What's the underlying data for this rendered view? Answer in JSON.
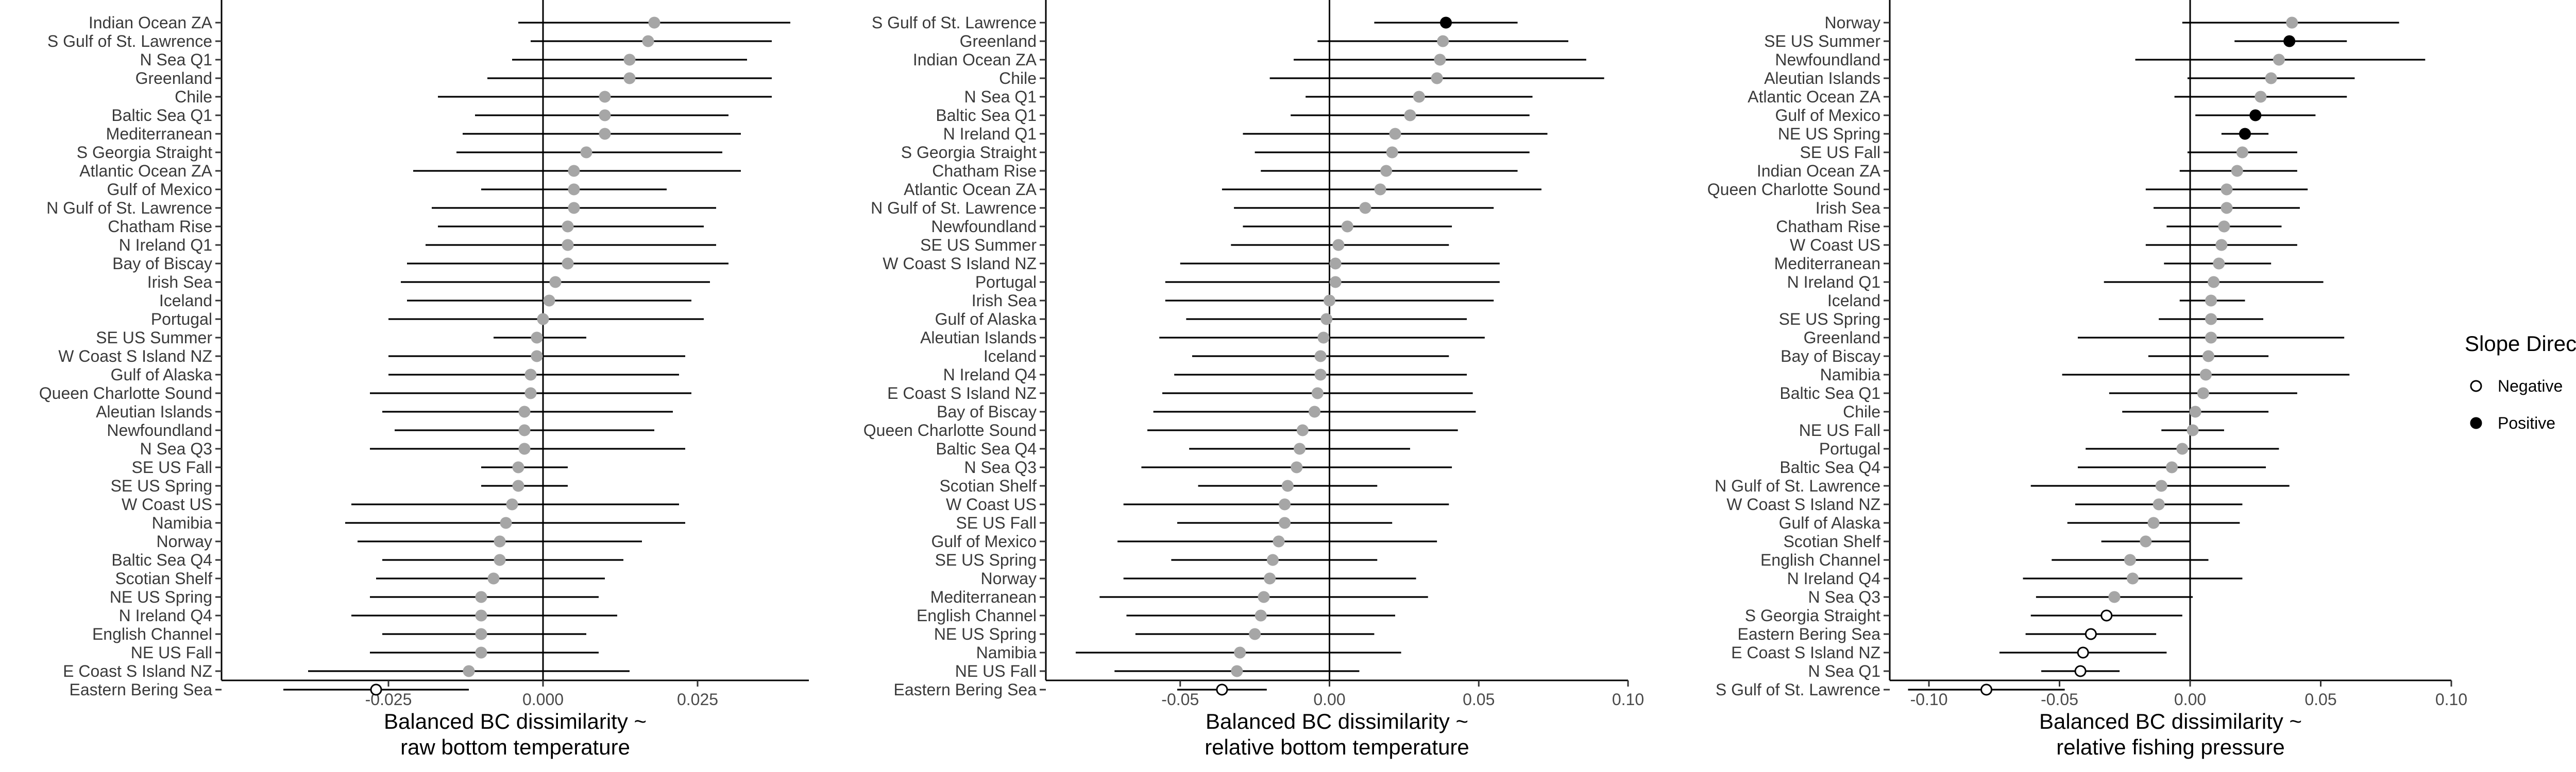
{
  "colors": {
    "negative": "#ffffff",
    "positive": "#000000",
    "nonsignificant": "#a6a6a6",
    "line": "#000000"
  },
  "legend": {
    "title": "Slope Direction",
    "items": [
      {
        "label": "Negative",
        "fill": "#ffffff"
      },
      {
        "label": "Positive",
        "fill": "#000000"
      }
    ]
  },
  "chart_data": [
    {
      "type": "forest",
      "xlabel_line1": "Balanced BC dissimilarity ~",
      "xlabel_line2": "raw bottom temperature",
      "xlim": [
        -0.052,
        0.043
      ],
      "xticks": [
        -0.025,
        0.0,
        0.025
      ],
      "xtick_labels": [
        "-0.025",
        "0.000",
        "0.025"
      ],
      "vline_at": 0,
      "points": [
        {
          "label": "Indian Ocean ZA",
          "est": 0.018,
          "lo": -0.004,
          "hi": 0.04,
          "sig": "none"
        },
        {
          "label": "S Gulf of St. Lawrence",
          "est": 0.017,
          "lo": -0.002,
          "hi": 0.037,
          "sig": "none"
        },
        {
          "label": "N Sea Q1",
          "est": 0.014,
          "lo": -0.005,
          "hi": 0.033,
          "sig": "none"
        },
        {
          "label": "Greenland",
          "est": 0.014,
          "lo": -0.009,
          "hi": 0.037,
          "sig": "none"
        },
        {
          "label": "Chile",
          "est": 0.01,
          "lo": -0.017,
          "hi": 0.037,
          "sig": "none"
        },
        {
          "label": "Baltic Sea Q1",
          "est": 0.01,
          "lo": -0.011,
          "hi": 0.03,
          "sig": "none"
        },
        {
          "label": "Mediterranean",
          "est": 0.01,
          "lo": -0.013,
          "hi": 0.032,
          "sig": "none"
        },
        {
          "label": "S Georgia Straight",
          "est": 0.007,
          "lo": -0.014,
          "hi": 0.029,
          "sig": "none"
        },
        {
          "label": "Atlantic Ocean ZA",
          "est": 0.005,
          "lo": -0.021,
          "hi": 0.032,
          "sig": "none"
        },
        {
          "label": "Gulf of Mexico",
          "est": 0.005,
          "lo": -0.01,
          "hi": 0.02,
          "sig": "none"
        },
        {
          "label": "N Gulf of St. Lawrence",
          "est": 0.005,
          "lo": -0.018,
          "hi": 0.028,
          "sig": "none"
        },
        {
          "label": "Chatham Rise",
          "est": 0.004,
          "lo": -0.017,
          "hi": 0.026,
          "sig": "none"
        },
        {
          "label": "N Ireland Q1",
          "est": 0.004,
          "lo": -0.019,
          "hi": 0.028,
          "sig": "none"
        },
        {
          "label": "Bay of Biscay",
          "est": 0.004,
          "lo": -0.022,
          "hi": 0.03,
          "sig": "none"
        },
        {
          "label": "Irish Sea",
          "est": 0.002,
          "lo": -0.023,
          "hi": 0.027,
          "sig": "none"
        },
        {
          "label": "Iceland",
          "est": 0.001,
          "lo": -0.022,
          "hi": 0.024,
          "sig": "none"
        },
        {
          "label": "Portugal",
          "est": 0.0,
          "lo": -0.025,
          "hi": 0.026,
          "sig": "none"
        },
        {
          "label": "SE US Summer",
          "est": -0.001,
          "lo": -0.008,
          "hi": 0.007,
          "sig": "none"
        },
        {
          "label": "W Coast S Island NZ",
          "est": -0.001,
          "lo": -0.025,
          "hi": 0.023,
          "sig": "none"
        },
        {
          "label": "Gulf of Alaska",
          "est": -0.002,
          "lo": -0.025,
          "hi": 0.022,
          "sig": "none"
        },
        {
          "label": "Queen Charlotte Sound",
          "est": -0.002,
          "lo": -0.028,
          "hi": 0.024,
          "sig": "none"
        },
        {
          "label": "Aleutian Islands",
          "est": -0.003,
          "lo": -0.026,
          "hi": 0.021,
          "sig": "none"
        },
        {
          "label": "Newfoundland",
          "est": -0.003,
          "lo": -0.024,
          "hi": 0.018,
          "sig": "none"
        },
        {
          "label": "N Sea Q3",
          "est": -0.003,
          "lo": -0.028,
          "hi": 0.023,
          "sig": "none"
        },
        {
          "label": "SE US Fall",
          "est": -0.004,
          "lo": -0.01,
          "hi": 0.004,
          "sig": "none"
        },
        {
          "label": "SE US Spring",
          "est": -0.004,
          "lo": -0.01,
          "hi": 0.004,
          "sig": "none"
        },
        {
          "label": "W Coast US",
          "est": -0.005,
          "lo": -0.031,
          "hi": 0.022,
          "sig": "none"
        },
        {
          "label": "Namibia",
          "est": -0.006,
          "lo": -0.032,
          "hi": 0.023,
          "sig": "none"
        },
        {
          "label": "Norway",
          "est": -0.007,
          "lo": -0.03,
          "hi": 0.016,
          "sig": "none"
        },
        {
          "label": "Baltic Sea Q4",
          "est": -0.007,
          "lo": -0.026,
          "hi": 0.013,
          "sig": "none"
        },
        {
          "label": "Scotian Shelf",
          "est": -0.008,
          "lo": -0.027,
          "hi": 0.01,
          "sig": "none"
        },
        {
          "label": "NE US Spring",
          "est": -0.01,
          "lo": -0.028,
          "hi": 0.009,
          "sig": "none"
        },
        {
          "label": "N Ireland Q4",
          "est": -0.01,
          "lo": -0.031,
          "hi": 0.012,
          "sig": "none"
        },
        {
          "label": "English Channel",
          "est": -0.01,
          "lo": -0.026,
          "hi": 0.007,
          "sig": "none"
        },
        {
          "label": "NE US Fall",
          "est": -0.01,
          "lo": -0.028,
          "hi": 0.009,
          "sig": "none"
        },
        {
          "label": "E Coast S Island NZ",
          "est": -0.012,
          "lo": -0.038,
          "hi": 0.014,
          "sig": "none"
        },
        {
          "label": "Eastern Bering Sea",
          "est": -0.027,
          "lo": -0.042,
          "hi": -0.012,
          "sig": "negative"
        }
      ]
    },
    {
      "type": "forest",
      "xlabel_line1": "Balanced BC dissimilarity ~",
      "xlabel_line2": "relative bottom temperature",
      "xlim": [
        -0.095,
        0.1
      ],
      "xticks": [
        -0.05,
        0.0,
        0.05,
        0.1
      ],
      "xtick_labels": [
        "-0.05",
        "0.00",
        "0.05",
        "0.10"
      ],
      "vline_at": 0,
      "points": [
        {
          "label": "S Gulf of St. Lawrence",
          "est": 0.039,
          "lo": 0.015,
          "hi": 0.063,
          "sig": "positive"
        },
        {
          "label": "Greenland",
          "est": 0.038,
          "lo": -0.004,
          "hi": 0.08,
          "sig": "none"
        },
        {
          "label": "Indian Ocean ZA",
          "est": 0.037,
          "lo": -0.012,
          "hi": 0.086,
          "sig": "none"
        },
        {
          "label": "Chile",
          "est": 0.036,
          "lo": -0.02,
          "hi": 0.092,
          "sig": "none"
        },
        {
          "label": "N Sea Q1",
          "est": 0.03,
          "lo": -0.008,
          "hi": 0.068,
          "sig": "none"
        },
        {
          "label": "Baltic Sea Q1",
          "est": 0.027,
          "lo": -0.013,
          "hi": 0.067,
          "sig": "none"
        },
        {
          "label": "N Ireland Q1",
          "est": 0.022,
          "lo": -0.029,
          "hi": 0.073,
          "sig": "none"
        },
        {
          "label": "S Georgia Straight",
          "est": 0.021,
          "lo": -0.025,
          "hi": 0.067,
          "sig": "none"
        },
        {
          "label": "Chatham Rise",
          "est": 0.019,
          "lo": -0.023,
          "hi": 0.063,
          "sig": "none"
        },
        {
          "label": "Atlantic Ocean ZA",
          "est": 0.017,
          "lo": -0.036,
          "hi": 0.071,
          "sig": "none"
        },
        {
          "label": "N Gulf of St. Lawrence",
          "est": 0.012,
          "lo": -0.032,
          "hi": 0.055,
          "sig": "none"
        },
        {
          "label": "Newfoundland",
          "est": 0.006,
          "lo": -0.029,
          "hi": 0.041,
          "sig": "none"
        },
        {
          "label": "SE US Summer",
          "est": 0.003,
          "lo": -0.033,
          "hi": 0.04,
          "sig": "none"
        },
        {
          "label": "W Coast S Island NZ",
          "est": 0.002,
          "lo": -0.05,
          "hi": 0.057,
          "sig": "none"
        },
        {
          "label": "Portugal",
          "est": 0.002,
          "lo": -0.055,
          "hi": 0.057,
          "sig": "none"
        },
        {
          "label": "Irish Sea",
          "est": 0.0,
          "lo": -0.055,
          "hi": 0.055,
          "sig": "none"
        },
        {
          "label": "Gulf of Alaska",
          "est": -0.001,
          "lo": -0.048,
          "hi": 0.046,
          "sig": "none"
        },
        {
          "label": "Aleutian Islands",
          "est": -0.002,
          "lo": -0.057,
          "hi": 0.052,
          "sig": "none"
        },
        {
          "label": "Iceland",
          "est": -0.003,
          "lo": -0.046,
          "hi": 0.04,
          "sig": "none"
        },
        {
          "label": "N Ireland Q4",
          "est": -0.003,
          "lo": -0.052,
          "hi": 0.046,
          "sig": "none"
        },
        {
          "label": "E Coast S Island NZ",
          "est": -0.004,
          "lo": -0.056,
          "hi": 0.048,
          "sig": "none"
        },
        {
          "label": "Bay of Biscay",
          "est": -0.005,
          "lo": -0.059,
          "hi": 0.049,
          "sig": "none"
        },
        {
          "label": "Queen Charlotte Sound",
          "est": -0.009,
          "lo": -0.061,
          "hi": 0.043,
          "sig": "none"
        },
        {
          "label": "Baltic Sea Q4",
          "est": -0.01,
          "lo": -0.047,
          "hi": 0.027,
          "sig": "none"
        },
        {
          "label": "N Sea Q3",
          "est": -0.011,
          "lo": -0.063,
          "hi": 0.041,
          "sig": "none"
        },
        {
          "label": "Scotian Shelf",
          "est": -0.014,
          "lo": -0.044,
          "hi": 0.016,
          "sig": "none"
        },
        {
          "label": "W Coast US",
          "est": -0.015,
          "lo": -0.069,
          "hi": 0.04,
          "sig": "none"
        },
        {
          "label": "SE US Fall",
          "est": -0.015,
          "lo": -0.051,
          "hi": 0.021,
          "sig": "none"
        },
        {
          "label": "Gulf of Mexico",
          "est": -0.017,
          "lo": -0.071,
          "hi": 0.036,
          "sig": "none"
        },
        {
          "label": "SE US Spring",
          "est": -0.019,
          "lo": -0.053,
          "hi": 0.016,
          "sig": "none"
        },
        {
          "label": "Norway",
          "est": -0.02,
          "lo": -0.069,
          "hi": 0.029,
          "sig": "none"
        },
        {
          "label": "Mediterranean",
          "est": -0.022,
          "lo": -0.077,
          "hi": 0.033,
          "sig": "none"
        },
        {
          "label": "English Channel",
          "est": -0.023,
          "lo": -0.068,
          "hi": 0.022,
          "sig": "none"
        },
        {
          "label": "NE US Spring",
          "est": -0.025,
          "lo": -0.065,
          "hi": 0.015,
          "sig": "none"
        },
        {
          "label": "Namibia",
          "est": -0.03,
          "lo": -0.085,
          "hi": 0.024,
          "sig": "none"
        },
        {
          "label": "NE US Fall",
          "est": -0.031,
          "lo": -0.072,
          "hi": 0.01,
          "sig": "none"
        },
        {
          "label": "Eastern Bering Sea",
          "est": -0.036,
          "lo": -0.051,
          "hi": -0.021,
          "sig": "negative"
        }
      ]
    },
    {
      "type": "forest",
      "xlabel_line1": "Balanced BC dissimilarity ~",
      "xlabel_line2": "relative fishing pressure",
      "xlim": [
        -0.115,
        0.1
      ],
      "xticks": [
        -0.1,
        -0.05,
        0.0,
        0.05,
        0.1
      ],
      "xtick_labels": [
        "-0.10",
        "-0.05",
        "0.00",
        "0.05",
        "0.10"
      ],
      "vline_at": 0,
      "points": [
        {
          "label": "Norway",
          "est": 0.039,
          "lo": -0.003,
          "hi": 0.08,
          "sig": "none"
        },
        {
          "label": "SE US Summer",
          "est": 0.038,
          "lo": 0.017,
          "hi": 0.06,
          "sig": "positive"
        },
        {
          "label": "Newfoundland",
          "est": 0.034,
          "lo": -0.021,
          "hi": 0.09,
          "sig": "none"
        },
        {
          "label": "Aleutian Islands",
          "est": 0.031,
          "lo": -0.001,
          "hi": 0.063,
          "sig": "none"
        },
        {
          "label": "Atlantic Ocean ZA",
          "est": 0.027,
          "lo": -0.006,
          "hi": 0.06,
          "sig": "none"
        },
        {
          "label": "Gulf of Mexico",
          "est": 0.025,
          "lo": 0.002,
          "hi": 0.048,
          "sig": "positive"
        },
        {
          "label": "NE US Spring",
          "est": 0.021,
          "lo": 0.012,
          "hi": 0.03,
          "sig": "positive"
        },
        {
          "label": "SE US Fall",
          "est": 0.02,
          "lo": -0.001,
          "hi": 0.041,
          "sig": "none"
        },
        {
          "label": "Indian Ocean ZA",
          "est": 0.018,
          "lo": -0.004,
          "hi": 0.041,
          "sig": "none"
        },
        {
          "label": "Queen Charlotte Sound",
          "est": 0.014,
          "lo": -0.017,
          "hi": 0.045,
          "sig": "none"
        },
        {
          "label": "Irish Sea",
          "est": 0.014,
          "lo": -0.014,
          "hi": 0.042,
          "sig": "none"
        },
        {
          "label": "Chatham Rise",
          "est": 0.013,
          "lo": -0.009,
          "hi": 0.035,
          "sig": "none"
        },
        {
          "label": "W Coast US",
          "est": 0.012,
          "lo": -0.017,
          "hi": 0.041,
          "sig": "none"
        },
        {
          "label": "Mediterranean",
          "est": 0.011,
          "lo": -0.01,
          "hi": 0.031,
          "sig": "none"
        },
        {
          "label": "N Ireland Q1",
          "est": 0.009,
          "lo": -0.033,
          "hi": 0.051,
          "sig": "none"
        },
        {
          "label": "Iceland",
          "est": 0.008,
          "lo": -0.004,
          "hi": 0.021,
          "sig": "none"
        },
        {
          "label": "SE US Spring",
          "est": 0.008,
          "lo": -0.012,
          "hi": 0.028,
          "sig": "none"
        },
        {
          "label": "Greenland",
          "est": 0.008,
          "lo": -0.043,
          "hi": 0.059,
          "sig": "none"
        },
        {
          "label": "Bay of Biscay",
          "est": 0.007,
          "lo": -0.016,
          "hi": 0.03,
          "sig": "none"
        },
        {
          "label": "Namibia",
          "est": 0.006,
          "lo": -0.049,
          "hi": 0.061,
          "sig": "none"
        },
        {
          "label": "Baltic Sea Q1",
          "est": 0.005,
          "lo": -0.031,
          "hi": 0.041,
          "sig": "none"
        },
        {
          "label": "Chile",
          "est": 0.002,
          "lo": -0.026,
          "hi": 0.03,
          "sig": "none"
        },
        {
          "label": "NE US Fall",
          "est": 0.001,
          "lo": -0.011,
          "hi": 0.013,
          "sig": "none"
        },
        {
          "label": "Portugal",
          "est": -0.003,
          "lo": -0.04,
          "hi": 0.034,
          "sig": "none"
        },
        {
          "label": "Baltic Sea Q4",
          "est": -0.007,
          "lo": -0.043,
          "hi": 0.029,
          "sig": "none"
        },
        {
          "label": "N Gulf of St. Lawrence",
          "est": -0.011,
          "lo": -0.061,
          "hi": 0.038,
          "sig": "none"
        },
        {
          "label": "W Coast S Island NZ",
          "est": -0.012,
          "lo": -0.044,
          "hi": 0.02,
          "sig": "none"
        },
        {
          "label": "Gulf of Alaska",
          "est": -0.014,
          "lo": -0.047,
          "hi": 0.019,
          "sig": "none"
        },
        {
          "label": "Scotian Shelf",
          "est": -0.017,
          "lo": -0.034,
          "hi": 0.0,
          "sig": "none"
        },
        {
          "label": "English Channel",
          "est": -0.023,
          "lo": -0.053,
          "hi": 0.007,
          "sig": "none"
        },
        {
          "label": "N Ireland Q4",
          "est": -0.022,
          "lo": -0.064,
          "hi": 0.02,
          "sig": "none"
        },
        {
          "label": "N Sea Q3",
          "est": -0.029,
          "lo": -0.059,
          "hi": 0.001,
          "sig": "none"
        },
        {
          "label": "S Georgia Straight",
          "est": -0.032,
          "lo": -0.061,
          "hi": -0.003,
          "sig": "negative"
        },
        {
          "label": "Eastern Bering Sea",
          "est": -0.038,
          "lo": -0.063,
          "hi": -0.013,
          "sig": "negative"
        },
        {
          "label": "E Coast S Island NZ",
          "est": -0.041,
          "lo": -0.073,
          "hi": -0.009,
          "sig": "negative"
        },
        {
          "label": "N Sea Q1",
          "est": -0.042,
          "lo": -0.057,
          "hi": -0.027,
          "sig": "negative"
        },
        {
          "label": "S Gulf of St. Lawrence",
          "est": -0.078,
          "lo": -0.108,
          "hi": -0.048,
          "sig": "negative"
        }
      ]
    }
  ]
}
